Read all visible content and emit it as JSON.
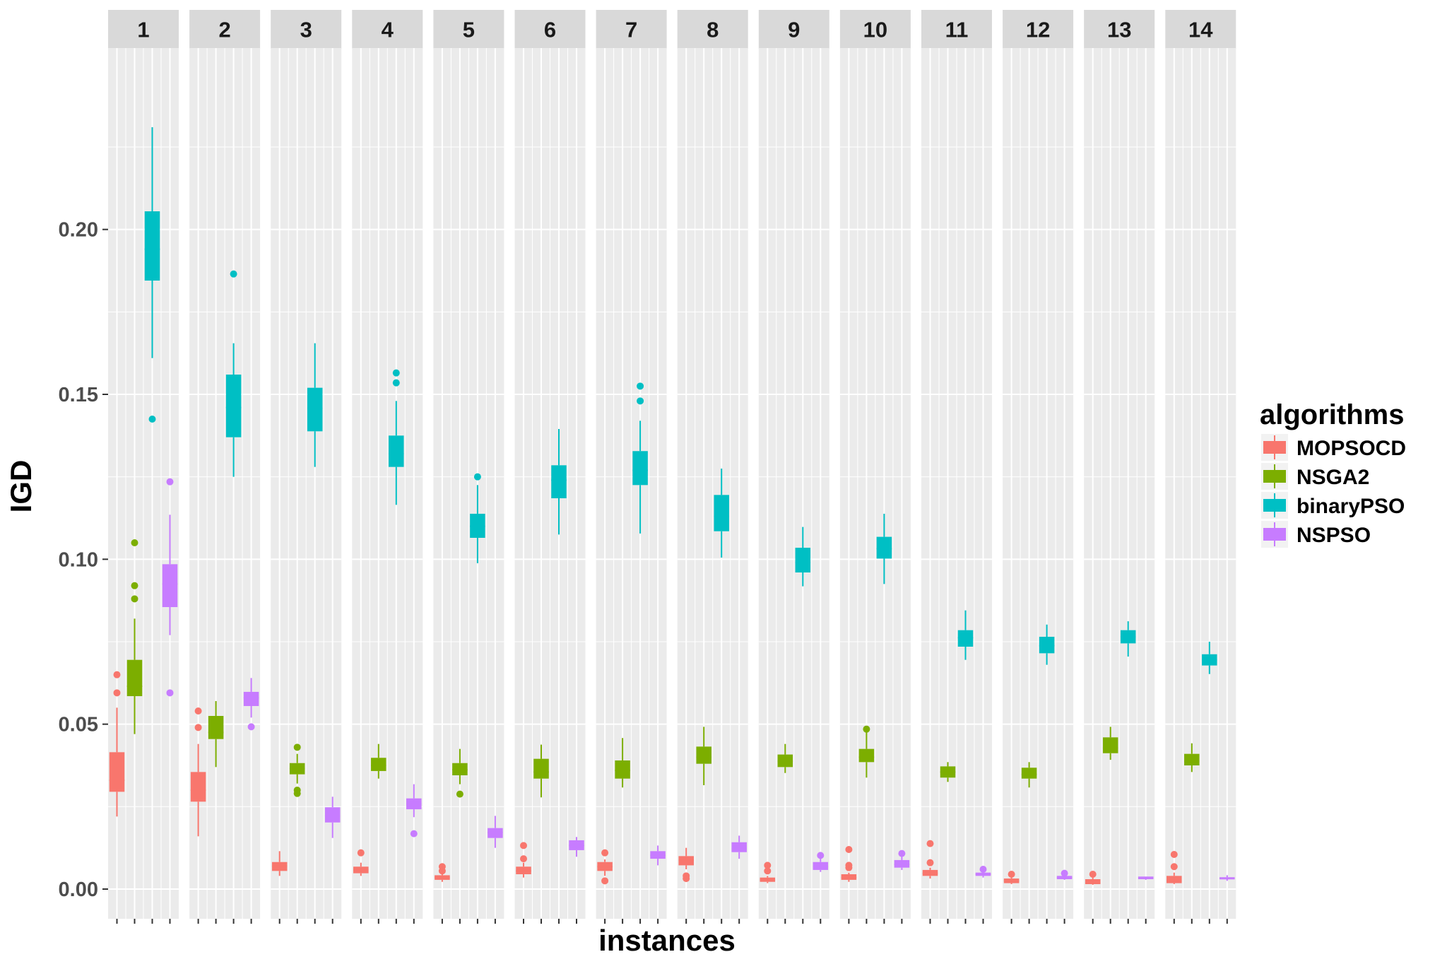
{
  "chart_data": {
    "type": "boxplot",
    "facet_label": "instances",
    "xlabel": "instances",
    "ylabel": "IGD",
    "ylim": [
      -0.009,
      0.255
    ],
    "y_ticks": [
      "0.00",
      "0.05",
      "0.10",
      "0.15",
      "0.20"
    ],
    "y_tick_values": [
      0.0,
      0.05,
      0.1,
      0.15,
      0.2
    ],
    "panels": [
      "1",
      "2",
      "3",
      "4",
      "5",
      "6",
      "7",
      "8",
      "9",
      "10",
      "11",
      "12",
      "13",
      "14"
    ],
    "legend": {
      "title": "algorithms",
      "entries": [
        "MOPSOCD",
        "NSGA2",
        "binaryPSO",
        "NSPSO"
      ]
    },
    "colors": {
      "MOPSOCD": "#F8766D",
      "NSGA2": "#7CAE00",
      "binaryPSO": "#00BFC4",
      "NSPSO": "#C77CFF",
      "panel_bg": "#EBEBEB",
      "strip_bg": "#D9D9D9",
      "grid": "#FFFFFF"
    },
    "series": [
      {
        "name": "MOPSOCD",
        "stats": [
          {
            "panel": "1",
            "lo": 0.022,
            "q1": 0.0295,
            "med": 0.033,
            "q3": 0.0415,
            "hi": 0.055,
            "outliers": [
              0.0595,
              0.065
            ]
          },
          {
            "panel": "2",
            "lo": 0.016,
            "q1": 0.0265,
            "med": 0.03,
            "q3": 0.0355,
            "hi": 0.044,
            "outliers": [
              0.049,
              0.054
            ]
          },
          {
            "panel": "3",
            "lo": 0.004,
            "q1": 0.0055,
            "med": 0.007,
            "q3": 0.0082,
            "hi": 0.0115,
            "outliers": []
          },
          {
            "panel": "4",
            "lo": 0.004,
            "q1": 0.0048,
            "med": 0.0058,
            "q3": 0.0068,
            "hi": 0.008,
            "outliers": [
              0.011
            ]
          },
          {
            "panel": "5",
            "lo": 0.0022,
            "q1": 0.0028,
            "med": 0.0035,
            "q3": 0.0042,
            "hi": 0.005,
            "outliers": [
              0.0055,
              0.0068
            ]
          },
          {
            "panel": "6",
            "lo": 0.0035,
            "q1": 0.0045,
            "med": 0.0055,
            "q3": 0.0068,
            "hi": 0.008,
            "outliers": [
              0.0092,
              0.0132
            ]
          },
          {
            "panel": "7",
            "lo": 0.004,
            "q1": 0.0055,
            "med": 0.0068,
            "q3": 0.0082,
            "hi": 0.009,
            "outliers": [
              0.0025,
              0.011
            ]
          },
          {
            "panel": "8",
            "lo": 0.006,
            "q1": 0.0072,
            "med": 0.0088,
            "q3": 0.01,
            "hi": 0.0125,
            "outliers": [
              0.0032,
              0.004
            ]
          },
          {
            "panel": "9",
            "lo": 0.0018,
            "q1": 0.0022,
            "med": 0.0028,
            "q3": 0.0035,
            "hi": 0.004,
            "outliers": [
              0.0055,
              0.0072
            ]
          },
          {
            "panel": "10",
            "lo": 0.0022,
            "q1": 0.0028,
            "med": 0.0035,
            "q3": 0.0045,
            "hi": 0.005,
            "outliers": [
              0.0065,
              0.0072,
              0.012
            ]
          },
          {
            "panel": "11",
            "lo": 0.0032,
            "q1": 0.004,
            "med": 0.0048,
            "q3": 0.0058,
            "hi": 0.0065,
            "outliers": [
              0.008,
              0.0138
            ]
          },
          {
            "panel": "12",
            "lo": 0.0015,
            "q1": 0.0018,
            "med": 0.0025,
            "q3": 0.0032,
            "hi": 0.0035,
            "outliers": [
              0.0045
            ]
          },
          {
            "panel": "13",
            "lo": 0.0013,
            "q1": 0.0015,
            "med": 0.002,
            "q3": 0.003,
            "hi": 0.0035,
            "outliers": [
              0.0045
            ]
          },
          {
            "panel": "14",
            "lo": 0.0015,
            "q1": 0.0018,
            "med": 0.0025,
            "q3": 0.004,
            "hi": 0.005,
            "outliers": [
              0.0068,
              0.0105
            ]
          }
        ]
      },
      {
        "name": "NSGA2",
        "stats": [
          {
            "panel": "1",
            "lo": 0.047,
            "q1": 0.0585,
            "med": 0.0615,
            "q3": 0.0695,
            "hi": 0.082,
            "outliers": [
              0.088,
              0.092,
              0.105
            ]
          },
          {
            "panel": "2",
            "lo": 0.037,
            "q1": 0.0455,
            "med": 0.0475,
            "q3": 0.0525,
            "hi": 0.057,
            "outliers": []
          },
          {
            "panel": "3",
            "lo": 0.032,
            "q1": 0.0348,
            "med": 0.0365,
            "q3": 0.0382,
            "hi": 0.041,
            "outliers": [
              0.029,
              0.03,
              0.043
            ]
          },
          {
            "panel": "4",
            "lo": 0.0335,
            "q1": 0.0358,
            "med": 0.0375,
            "q3": 0.0398,
            "hi": 0.044,
            "outliers": []
          },
          {
            "panel": "5",
            "lo": 0.0318,
            "q1": 0.0345,
            "med": 0.0362,
            "q3": 0.0382,
            "hi": 0.0425,
            "outliers": [
              0.0288
            ]
          },
          {
            "panel": "6",
            "lo": 0.0278,
            "q1": 0.0335,
            "med": 0.0355,
            "q3": 0.0395,
            "hi": 0.0438,
            "outliers": []
          },
          {
            "panel": "7",
            "lo": 0.0308,
            "q1": 0.0335,
            "med": 0.036,
            "q3": 0.039,
            "hi": 0.0458,
            "outliers": []
          },
          {
            "panel": "8",
            "lo": 0.0315,
            "q1": 0.038,
            "med": 0.04,
            "q3": 0.0432,
            "hi": 0.0492,
            "outliers": []
          },
          {
            "panel": "9",
            "lo": 0.0352,
            "q1": 0.037,
            "med": 0.0388,
            "q3": 0.0408,
            "hi": 0.044,
            "outliers": []
          },
          {
            "panel": "10",
            "lo": 0.0338,
            "q1": 0.0385,
            "med": 0.04,
            "q3": 0.0425,
            "hi": 0.0475,
            "outliers": [
              0.0485
            ]
          },
          {
            "panel": "11",
            "lo": 0.0325,
            "q1": 0.0338,
            "med": 0.0355,
            "q3": 0.0372,
            "hi": 0.0385,
            "outliers": []
          },
          {
            "panel": "12",
            "lo": 0.0308,
            "q1": 0.0335,
            "med": 0.0348,
            "q3": 0.0368,
            "hi": 0.0385,
            "outliers": []
          },
          {
            "panel": "13",
            "lo": 0.0392,
            "q1": 0.0412,
            "med": 0.0428,
            "q3": 0.046,
            "hi": 0.0492,
            "outliers": []
          },
          {
            "panel": "14",
            "lo": 0.0355,
            "q1": 0.0375,
            "med": 0.0388,
            "q3": 0.041,
            "hi": 0.0442,
            "outliers": []
          }
        ]
      },
      {
        "name": "binaryPSO",
        "stats": [
          {
            "panel": "1",
            "lo": 0.161,
            "q1": 0.1845,
            "med": 0.194,
            "q3": 0.2055,
            "hi": 0.231,
            "outliers": [
              0.1425
            ]
          },
          {
            "panel": "2",
            "lo": 0.125,
            "q1": 0.137,
            "med": 0.146,
            "q3": 0.156,
            "hi": 0.1655,
            "outliers": [
              0.1865
            ]
          },
          {
            "panel": "3",
            "lo": 0.128,
            "q1": 0.1388,
            "med": 0.1458,
            "q3": 0.152,
            "hi": 0.1655,
            "outliers": []
          },
          {
            "panel": "4",
            "lo": 0.1165,
            "q1": 0.128,
            "med": 0.132,
            "q3": 0.1375,
            "hi": 0.148,
            "outliers": [
              0.1535,
              0.1565
            ]
          },
          {
            "panel": "5",
            "lo": 0.0988,
            "q1": 0.1065,
            "med": 0.11,
            "q3": 0.1138,
            "hi": 0.1225,
            "outliers": [
              0.125
            ]
          },
          {
            "panel": "6",
            "lo": 0.1075,
            "q1": 0.1185,
            "med": 0.124,
            "q3": 0.1285,
            "hi": 0.1395,
            "outliers": []
          },
          {
            "panel": "7",
            "lo": 0.1078,
            "q1": 0.1225,
            "med": 0.127,
            "q3": 0.1328,
            "hi": 0.142,
            "outliers": [
              0.148,
              0.1525
            ]
          },
          {
            "panel": "8",
            "lo": 0.1005,
            "q1": 0.1085,
            "med": 0.113,
            "q3": 0.1195,
            "hi": 0.1275,
            "outliers": []
          },
          {
            "panel": "9",
            "lo": 0.0918,
            "q1": 0.096,
            "med": 0.099,
            "q3": 0.1035,
            "hi": 0.1098,
            "outliers": []
          },
          {
            "panel": "10",
            "lo": 0.0925,
            "q1": 0.1002,
            "med": 0.1032,
            "q3": 0.1068,
            "hi": 0.1138,
            "outliers": []
          },
          {
            "panel": "11",
            "lo": 0.0695,
            "q1": 0.0735,
            "med": 0.0762,
            "q3": 0.0785,
            "hi": 0.0845,
            "outliers": []
          },
          {
            "panel": "12",
            "lo": 0.068,
            "q1": 0.0715,
            "med": 0.0738,
            "q3": 0.0765,
            "hi": 0.0802,
            "outliers": []
          },
          {
            "panel": "13",
            "lo": 0.0705,
            "q1": 0.0745,
            "med": 0.0765,
            "q3": 0.0785,
            "hi": 0.0812,
            "outliers": []
          },
          {
            "panel": "14",
            "lo": 0.0652,
            "q1": 0.0678,
            "med": 0.0695,
            "q3": 0.0712,
            "hi": 0.075,
            "outliers": []
          }
        ]
      },
      {
        "name": "NSPSO",
        "stats": [
          {
            "panel": "1",
            "lo": 0.077,
            "q1": 0.0855,
            "med": 0.0925,
            "q3": 0.0985,
            "hi": 0.1135,
            "outliers": [
              0.0595,
              0.1235
            ]
          },
          {
            "panel": "2",
            "lo": 0.052,
            "q1": 0.0555,
            "med": 0.058,
            "q3": 0.0598,
            "hi": 0.064,
            "outliers": [
              0.0492
            ]
          },
          {
            "panel": "3",
            "lo": 0.0155,
            "q1": 0.0202,
            "med": 0.0222,
            "q3": 0.0248,
            "hi": 0.028,
            "outliers": []
          },
          {
            "panel": "4",
            "lo": 0.0218,
            "q1": 0.0242,
            "med": 0.0258,
            "q3": 0.0275,
            "hi": 0.0318,
            "outliers": [
              0.0168
            ]
          },
          {
            "panel": "5",
            "lo": 0.0125,
            "q1": 0.0155,
            "med": 0.0172,
            "q3": 0.0185,
            "hi": 0.0222,
            "outliers": []
          },
          {
            "panel": "6",
            "lo": 0.0098,
            "q1": 0.0118,
            "med": 0.0132,
            "q3": 0.0148,
            "hi": 0.0158,
            "outliers": []
          },
          {
            "panel": "7",
            "lo": 0.0072,
            "q1": 0.0092,
            "med": 0.0102,
            "q3": 0.0115,
            "hi": 0.0132,
            "outliers": []
          },
          {
            "panel": "8",
            "lo": 0.0092,
            "q1": 0.0112,
            "med": 0.0122,
            "q3": 0.0142,
            "hi": 0.0162,
            "outliers": []
          },
          {
            "panel": "9",
            "lo": 0.0052,
            "q1": 0.0058,
            "med": 0.0068,
            "q3": 0.0082,
            "hi": 0.0098,
            "outliers": [
              0.0102
            ]
          },
          {
            "panel": "10",
            "lo": 0.0058,
            "q1": 0.0065,
            "med": 0.0075,
            "q3": 0.0088,
            "hi": 0.0098,
            "outliers": [
              0.0108
            ]
          },
          {
            "panel": "11",
            "lo": 0.0035,
            "q1": 0.004,
            "med": 0.0045,
            "q3": 0.005,
            "hi": 0.0055,
            "outliers": [
              0.006
            ]
          },
          {
            "panel": "12",
            "lo": 0.0028,
            "q1": 0.003,
            "med": 0.0035,
            "q3": 0.004,
            "hi": 0.0045,
            "outliers": [
              0.0048
            ]
          },
          {
            "panel": "13",
            "lo": 0.0028,
            "q1": 0.003,
            "med": 0.0035,
            "q3": 0.0038,
            "hi": 0.0038,
            "outliers": []
          },
          {
            "panel": "14",
            "lo": 0.0025,
            "q1": 0.003,
            "med": 0.0032,
            "q3": 0.0036,
            "hi": 0.0042,
            "outliers": []
          }
        ]
      }
    ]
  }
}
